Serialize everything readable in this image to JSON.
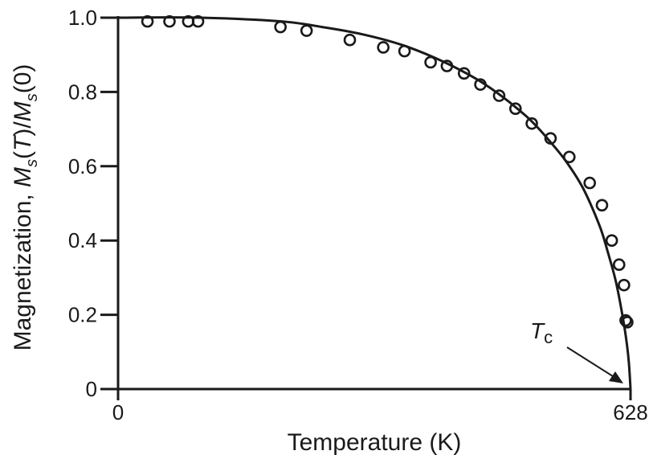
{
  "chart_data": {
    "type": "scatter",
    "title": "",
    "xlabel": "Temperature (K)",
    "ylabel_parts": [
      "Magnetization, ",
      "M",
      "s",
      "(",
      "T",
      ")/",
      "M",
      "s",
      "(0)"
    ],
    "xlim": [
      0,
      628
    ],
    "ylim": [
      0,
      1.0
    ],
    "x_ticks": [
      {
        "value": 0,
        "label": "0"
      },
      {
        "value": 628,
        "label": "628"
      }
    ],
    "y_ticks": [
      {
        "value": 0,
        "label": "0"
      },
      {
        "value": 0.2,
        "label": "0.2"
      },
      {
        "value": 0.4,
        "label": "0.4"
      },
      {
        "value": 0.6,
        "label": "0.6"
      },
      {
        "value": 0.8,
        "label": "0.8"
      },
      {
        "value": 1.0,
        "label": "1.0"
      }
    ],
    "grid": false,
    "series": [
      {
        "kind": "points",
        "marker": "open-circle",
        "x": [
          36,
          63,
          86,
          98,
          199,
          231,
          284,
          325,
          351,
          383,
          403,
          424,
          444,
          467,
          487,
          507,
          530,
          553,
          578,
          593,
          605,
          614,
          620,
          622,
          624
        ],
        "y": [
          0.99,
          0.99,
          0.99,
          0.99,
          0.975,
          0.965,
          0.94,
          0.92,
          0.91,
          0.88,
          0.87,
          0.85,
          0.82,
          0.79,
          0.755,
          0.715,
          0.675,
          0.625,
          0.555,
          0.495,
          0.4,
          0.335,
          0.28,
          0.185,
          0.18
        ]
      },
      {
        "kind": "curve",
        "x": [
          0,
          100,
          200,
          250,
          300,
          350,
          400,
          450,
          500,
          530,
          550,
          570,
          590,
          600,
          610,
          618,
          623,
          626,
          628
        ],
        "y": [
          1.0,
          1.0,
          0.99,
          0.975,
          0.955,
          0.925,
          0.88,
          0.82,
          0.735,
          0.665,
          0.61,
          0.54,
          0.44,
          0.37,
          0.29,
          0.2,
          0.13,
          0.07,
          0.0
        ]
      }
    ],
    "annotations": [
      {
        "text_main": "T",
        "text_sub": "c",
        "points_to": {
          "x": 628,
          "y": 0
        }
      }
    ]
  }
}
